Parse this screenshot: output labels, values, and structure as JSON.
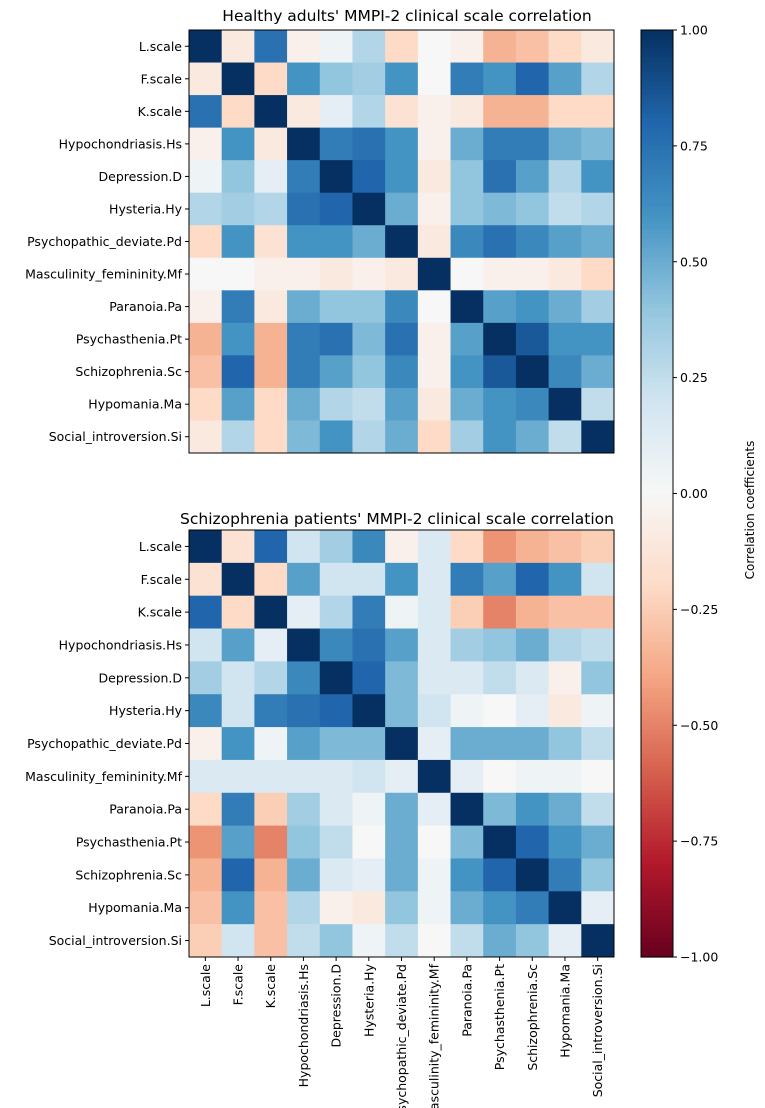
{
  "chart_data": [
    {
      "type": "heatmap",
      "title": "Healthy adults' MMPI-2 clinical scale correlation",
      "row_labels": [
        "L.scale",
        "F.scale",
        "K.scale",
        "Hypochondriasis.Hs",
        "Depression.D",
        "Hysteria.Hy",
        "Psychopathic_deviate.Pd",
        "Masculinity_femininity.Mf",
        "Paranoia.Pa",
        "Psychasthenia.Pt",
        "Schizophrenia.Sc",
        "Hypomania.Ma",
        "Social_introversion.Si"
      ],
      "col_labels": [],
      "vmin": -1.0,
      "vmax": 1.0,
      "values": [
        [
          1.0,
          -0.1,
          0.75,
          -0.05,
          0.05,
          0.3,
          -0.2,
          0.0,
          -0.05,
          -0.35,
          -0.3,
          -0.2,
          -0.1
        ],
        [
          -0.1,
          1.0,
          -0.2,
          0.6,
          0.4,
          0.35,
          0.6,
          0.0,
          0.7,
          0.6,
          0.8,
          0.55,
          0.3
        ],
        [
          0.75,
          -0.2,
          1.0,
          -0.1,
          0.1,
          0.3,
          -0.15,
          -0.05,
          -0.1,
          -0.35,
          -0.35,
          -0.2,
          -0.2
        ],
        [
          -0.05,
          0.6,
          -0.1,
          1.0,
          0.7,
          0.75,
          0.6,
          -0.05,
          0.5,
          0.7,
          0.7,
          0.5,
          0.45
        ],
        [
          0.05,
          0.4,
          0.1,
          0.7,
          1.0,
          0.8,
          0.6,
          -0.1,
          0.4,
          0.75,
          0.55,
          0.3,
          0.6
        ],
        [
          0.3,
          0.35,
          0.3,
          0.75,
          0.8,
          1.0,
          0.5,
          -0.05,
          0.4,
          0.45,
          0.4,
          0.25,
          0.3
        ],
        [
          -0.2,
          0.6,
          -0.15,
          0.6,
          0.6,
          0.5,
          1.0,
          -0.1,
          0.65,
          0.75,
          0.65,
          0.55,
          0.5
        ],
        [
          0.0,
          0.0,
          -0.05,
          -0.05,
          -0.1,
          -0.05,
          -0.1,
          1.0,
          0.0,
          -0.05,
          -0.05,
          -0.1,
          -0.2
        ],
        [
          -0.05,
          0.7,
          -0.1,
          0.5,
          0.4,
          0.4,
          0.65,
          0.0,
          1.0,
          0.55,
          0.6,
          0.5,
          0.35
        ],
        [
          -0.35,
          0.6,
          -0.35,
          0.7,
          0.75,
          0.45,
          0.75,
          -0.05,
          0.55,
          1.0,
          0.85,
          0.6,
          0.6
        ],
        [
          -0.3,
          0.8,
          -0.35,
          0.7,
          0.55,
          0.4,
          0.65,
          -0.05,
          0.6,
          0.85,
          1.0,
          0.65,
          0.5
        ],
        [
          -0.2,
          0.55,
          -0.2,
          0.5,
          0.3,
          0.25,
          0.55,
          -0.1,
          0.5,
          0.6,
          0.65,
          1.0,
          0.25
        ],
        [
          -0.1,
          0.3,
          -0.2,
          0.45,
          0.6,
          0.3,
          0.5,
          -0.2,
          0.35,
          0.6,
          0.5,
          0.25,
          1.0
        ]
      ]
    },
    {
      "type": "heatmap",
      "title": "Schizophrenia patients' MMPI-2 clinical scale correlation",
      "row_labels": [
        "L.scale",
        "F.scale",
        "K.scale",
        "Hypochondriasis.Hs",
        "Depression.D",
        "Hysteria.Hy",
        "Psychopathic_deviate.Pd",
        "Masculinity_femininity.Mf",
        "Paranoia.Pa",
        "Psychasthenia.Pt",
        "Schizophrenia.Sc",
        "Hypomania.Ma",
        "Social_introversion.Si"
      ],
      "col_labels": [
        "L.scale",
        "F.scale",
        "K.scale",
        "Hypochondriasis.Hs",
        "Depression.D",
        "Hysteria.Hy",
        "Psychopathic_deviate.Pd",
        "Masculinity_femininity.Mf",
        "Paranoia.Pa",
        "Psychasthenia.Pt",
        "Schizophrenia.Sc",
        "Hypomania.Ma",
        "Social_introversion.Si"
      ],
      "vmin": -1.0,
      "vmax": 1.0,
      "values": [
        [
          1.0,
          -0.15,
          0.8,
          0.2,
          0.35,
          0.65,
          -0.05,
          0.15,
          -0.2,
          -0.45,
          -0.35,
          -0.3,
          -0.25
        ],
        [
          -0.15,
          1.0,
          -0.2,
          0.55,
          0.2,
          0.2,
          0.6,
          0.15,
          0.7,
          0.55,
          0.8,
          0.6,
          0.2
        ],
        [
          0.8,
          -0.2,
          1.0,
          0.1,
          0.3,
          0.7,
          0.05,
          0.15,
          -0.25,
          -0.5,
          -0.35,
          -0.3,
          -0.3
        ],
        [
          0.2,
          0.55,
          0.1,
          1.0,
          0.65,
          0.75,
          0.55,
          0.15,
          0.35,
          0.4,
          0.5,
          0.3,
          0.25
        ],
        [
          0.35,
          0.2,
          0.3,
          0.65,
          1.0,
          0.8,
          0.45,
          0.15,
          0.15,
          0.25,
          0.15,
          -0.05,
          0.4
        ],
        [
          0.65,
          0.2,
          0.7,
          0.75,
          0.8,
          1.0,
          0.45,
          0.2,
          0.05,
          0.0,
          0.1,
          -0.1,
          0.05
        ],
        [
          -0.05,
          0.6,
          0.05,
          0.55,
          0.45,
          0.45,
          1.0,
          0.1,
          0.5,
          0.5,
          0.5,
          0.4,
          0.25
        ],
        [
          0.15,
          0.15,
          0.15,
          0.15,
          0.15,
          0.2,
          0.1,
          1.0,
          0.1,
          0.0,
          0.05,
          0.05,
          0.0
        ],
        [
          -0.2,
          0.7,
          -0.25,
          0.35,
          0.15,
          0.05,
          0.5,
          0.1,
          1.0,
          0.45,
          0.6,
          0.5,
          0.25
        ],
        [
          -0.45,
          0.55,
          -0.5,
          0.4,
          0.25,
          0.0,
          0.5,
          0.0,
          0.45,
          1.0,
          0.8,
          0.6,
          0.5
        ],
        [
          -0.35,
          0.8,
          -0.35,
          0.5,
          0.15,
          0.1,
          0.5,
          0.05,
          0.6,
          0.8,
          1.0,
          0.7,
          0.4
        ],
        [
          -0.3,
          0.6,
          -0.3,
          0.3,
          -0.05,
          -0.1,
          0.4,
          0.05,
          0.5,
          0.6,
          0.7,
          1.0,
          0.1
        ],
        [
          -0.25,
          0.2,
          -0.3,
          0.25,
          0.4,
          0.05,
          0.25,
          0.0,
          0.25,
          0.5,
          0.4,
          0.1,
          1.0
        ]
      ]
    }
  ],
  "colorbar": {
    "label": "Correlation coefficients",
    "ticks": [
      "1.00",
      "0.75",
      "0.50",
      "0.25",
      "0.00",
      "−0.25",
      "−0.50",
      "−0.75",
      "−1.00"
    ],
    "tick_values": [
      1.0,
      0.75,
      0.5,
      0.25,
      0.0,
      -0.25,
      -0.5,
      -0.75,
      -1.0
    ],
    "colormap": "RdBu_r",
    "colors": [
      "#67001f",
      "#b2182b",
      "#d6604d",
      "#f4a582",
      "#fddbc7",
      "#f7f7f7",
      "#d1e5f0",
      "#92c5de",
      "#4393c3",
      "#2166ac",
      "#053061"
    ]
  }
}
